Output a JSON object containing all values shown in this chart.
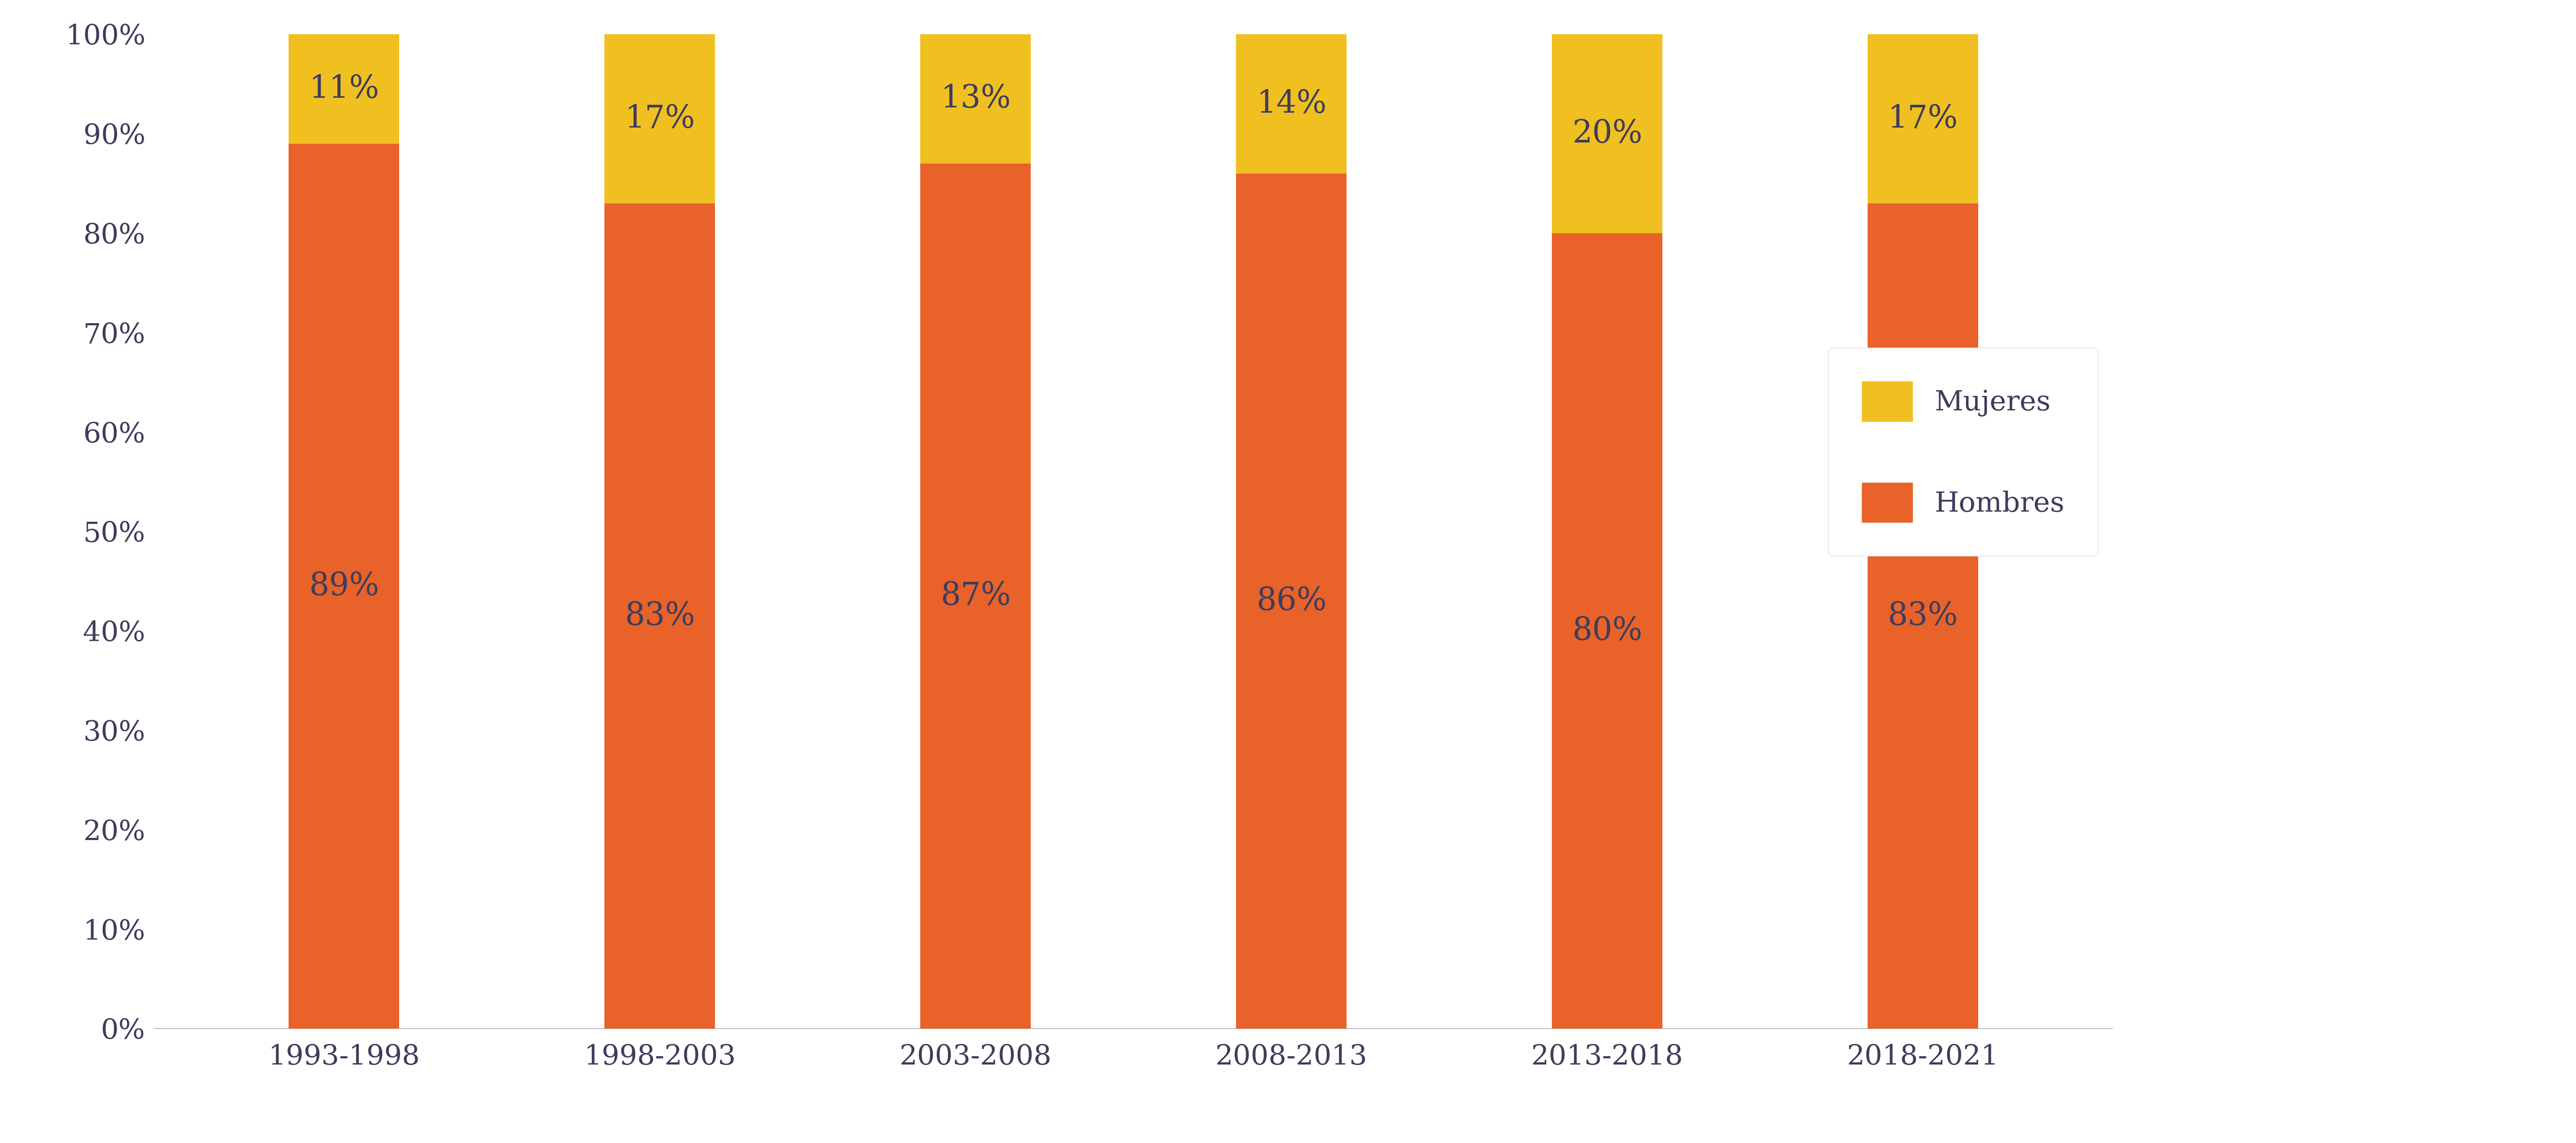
{
  "categories": [
    "1993-1998",
    "1998-2003",
    "2003-2008",
    "2008-2013",
    "2013-2018",
    "2018-2021"
  ],
  "hombres": [
    89,
    83,
    87,
    86,
    80,
    83
  ],
  "mujeres": [
    11,
    17,
    13,
    14,
    20,
    17
  ],
  "color_hombres": "#E8622A",
  "color_mujeres": "#F0C020",
  "bar_width": 0.35,
  "ylim": [
    0,
    100
  ],
  "yticks": [
    0,
    10,
    20,
    30,
    40,
    50,
    60,
    70,
    80,
    90,
    100
  ],
  "ytick_labels": [
    "0%",
    "10%",
    "20%",
    "30%",
    "40%",
    "50%",
    "60%",
    "70%",
    "80%",
    "90%",
    "100%"
  ],
  "legend_mujeres": "Mujeres",
  "legend_hombres": "Hombres",
  "background_color": "#FFFFFF",
  "text_color": "#3D3D5C",
  "fontsize_ticks": 46,
  "fontsize_legend": 46,
  "fontsize_bar_labels": 52
}
